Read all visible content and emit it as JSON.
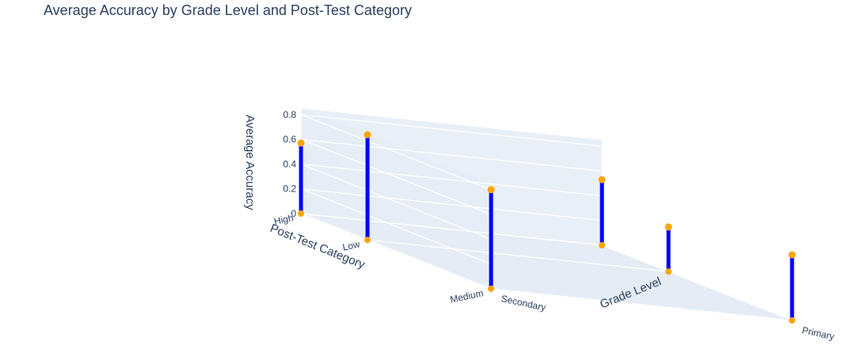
{
  "chart_data": {
    "type": "scatter3d",
    "title": "Average Accuracy by Grade Level and Post-Test Category",
    "xlabel": "Grade Level",
    "ylabel": "Post-Test Category",
    "zlabel": "Average Accuracy",
    "x_categories": [
      "Primary",
      "Secondary"
    ],
    "y_categories": [
      "High",
      "Low",
      "Medium"
    ],
    "z_ticks": [
      "0",
      "0.2",
      "0.4",
      "0.6",
      "0.8"
    ],
    "zlim": [
      0,
      0.85
    ],
    "grid": true,
    "colors": {
      "stem": "#0000ff",
      "marker": "#ffa500",
      "scene_bg": "#e5ecf6",
      "grid": "#ffffff",
      "text": "#2a3f5f"
    },
    "points": [
      {
        "x": "Secondary",
        "y": "High",
        "z": 0.57
      },
      {
        "x": "Secondary",
        "y": "Low",
        "z": 0.85
      },
      {
        "x": "Secondary",
        "y": "Medium",
        "z": 0.8
      },
      {
        "x": "Primary",
        "y": "High",
        "z": 0.53
      },
      {
        "x": "Primary",
        "y": "Low",
        "z": 0.36
      },
      {
        "x": "Primary",
        "y": "Medium",
        "z": 0.53
      }
    ]
  }
}
